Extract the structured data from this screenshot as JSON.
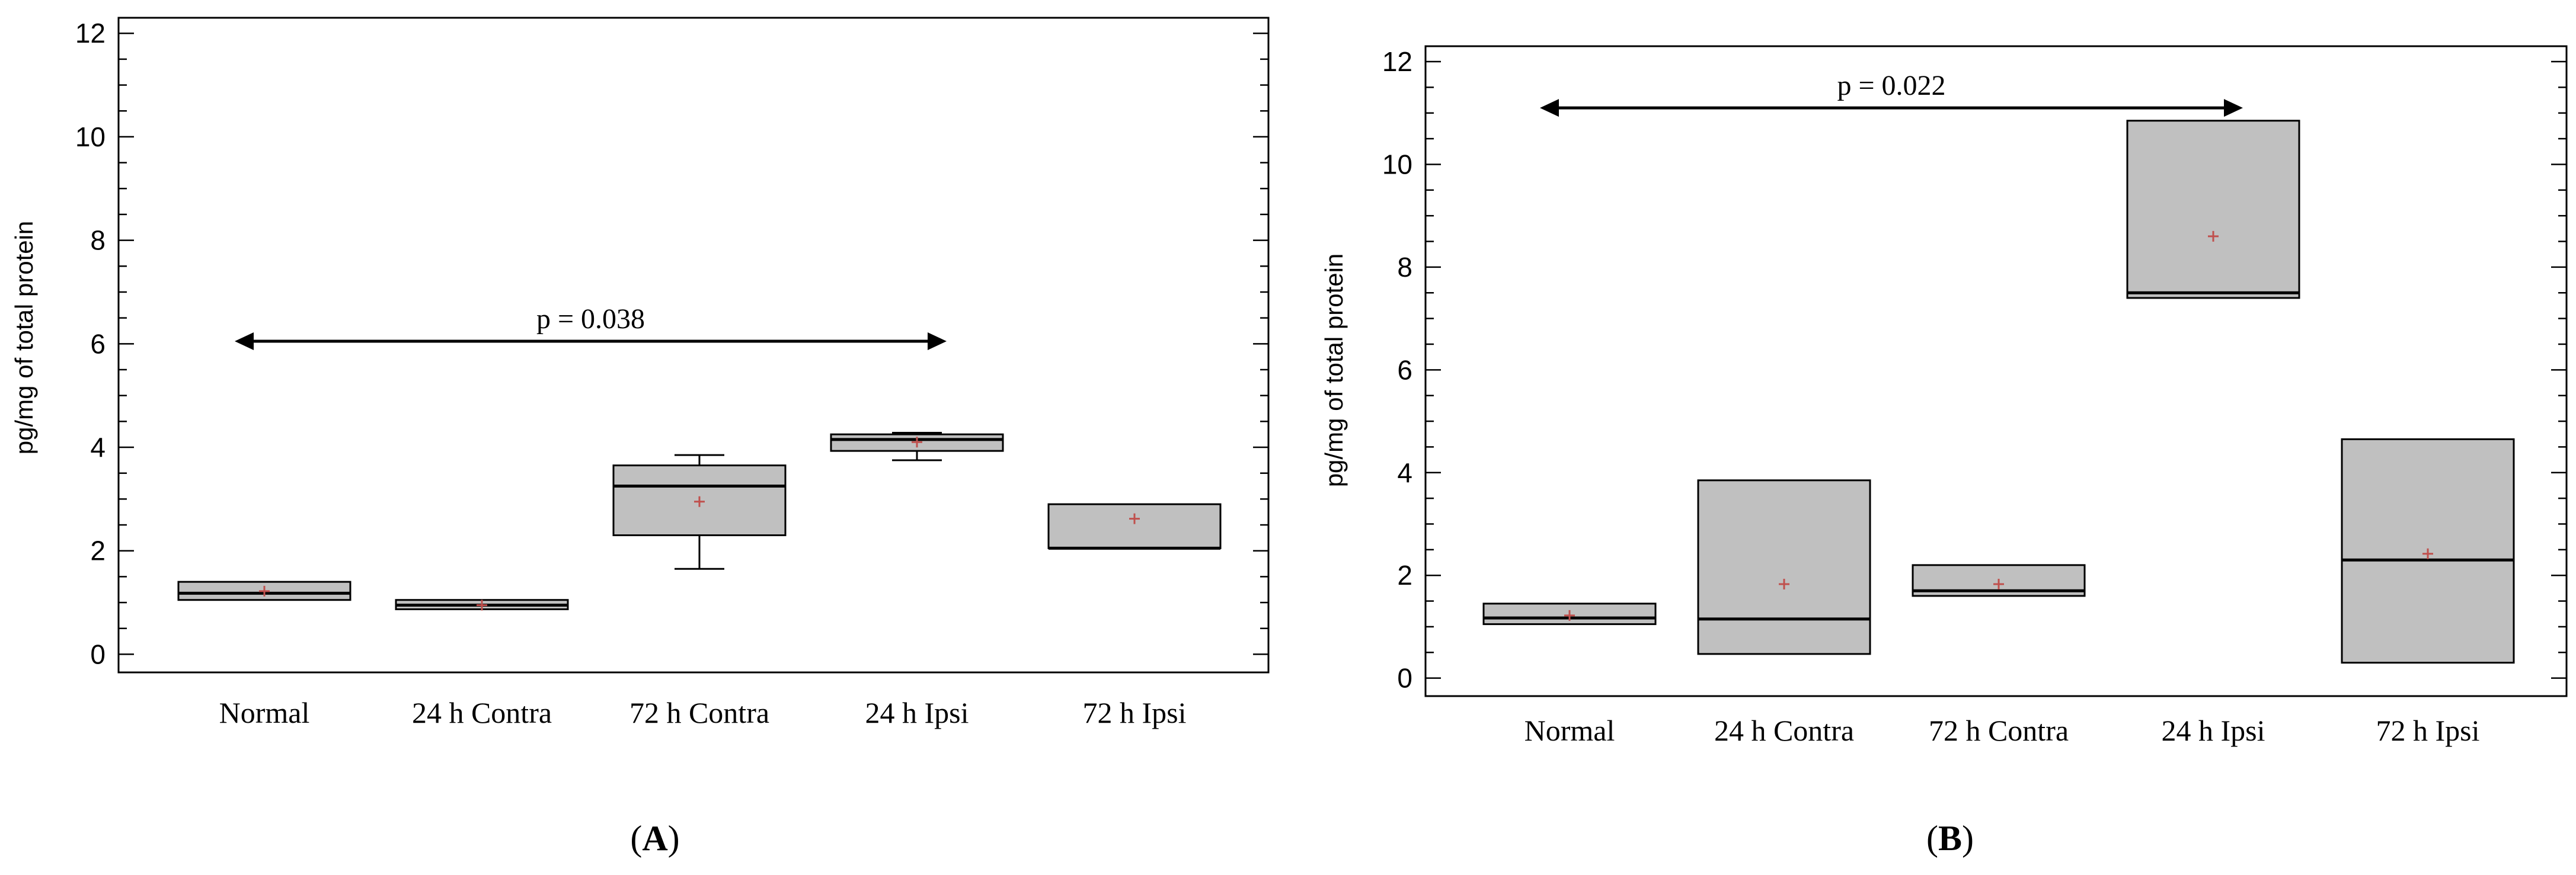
{
  "chart_data": [
    {
      "type": "box",
      "panel_label": "A",
      "ylabel": "pg/mg of total protein",
      "ylim": [
        -0.35,
        12.3
      ],
      "yticks": [
        "0",
        "2",
        "4",
        "6",
        "8",
        "10",
        "12"
      ],
      "categories": [
        "Normal",
        "24 h Contra",
        "72 h Contra",
        "24 h Ipsi",
        "72 h Ipsi"
      ],
      "boxes": [
        {
          "category": "Normal",
          "q1": 1.05,
          "median": 1.18,
          "q3": 1.4,
          "mean": 1.22
        },
        {
          "category": "24 h Contra",
          "q1": 0.87,
          "median": 0.95,
          "q3": 1.05,
          "mean": 0.95
        },
        {
          "category": "72 h Contra",
          "whisker_low": 1.65,
          "q1": 2.3,
          "median": 3.25,
          "q3": 3.65,
          "whisker_high": 3.85,
          "mean": 2.95
        },
        {
          "category": "24 h Ipsi",
          "whisker_low": 3.75,
          "q1": 3.93,
          "median": 4.15,
          "q3": 4.25,
          "whisker_high": 4.28,
          "mean": 4.1
        },
        {
          "category": "72 h Ipsi",
          "q1": 2.05,
          "median": 2.05,
          "q3": 2.9,
          "mean": 2.62
        }
      ],
      "annotation": {
        "text": "p = 0.038",
        "from": "Normal",
        "to": "24 h Ipsi",
        "y": 6.05
      }
    },
    {
      "type": "box",
      "panel_label": "B",
      "ylabel": "pg/mg of total protein",
      "ylim": [
        -0.35,
        12.3
      ],
      "yticks": [
        "0",
        "2",
        "4",
        "6",
        "8",
        "10",
        "12"
      ],
      "categories": [
        "Normal",
        "24 h Contra",
        "72 h Contra",
        "24 h Ipsi",
        "72 h Ipsi"
      ],
      "boxes": [
        {
          "category": "Normal",
          "q1": 1.05,
          "median": 1.17,
          "q3": 1.45,
          "mean": 1.22
        },
        {
          "category": "24 h Contra",
          "q1": 0.47,
          "median": 1.15,
          "q3": 3.85,
          "mean": 1.83
        },
        {
          "category": "72 h Contra",
          "q1": 1.6,
          "median": 1.7,
          "q3": 2.2,
          "mean": 1.83
        },
        {
          "category": "24 h Ipsi",
          "q1": 7.4,
          "median": 7.5,
          "q3": 10.85,
          "mean": 8.6
        },
        {
          "category": "72 h Ipsi",
          "q1": 0.3,
          "median": 2.3,
          "q3": 4.65,
          "mean": 2.42
        }
      ],
      "annotation": {
        "text": "p = 0.022",
        "from": "Normal",
        "to": "24 h Ipsi",
        "y": 11.1
      }
    }
  ],
  "colors": {
    "box_fill": "#c0c0c0",
    "outline": "#000000",
    "mean_marker": "#c0504d"
  }
}
